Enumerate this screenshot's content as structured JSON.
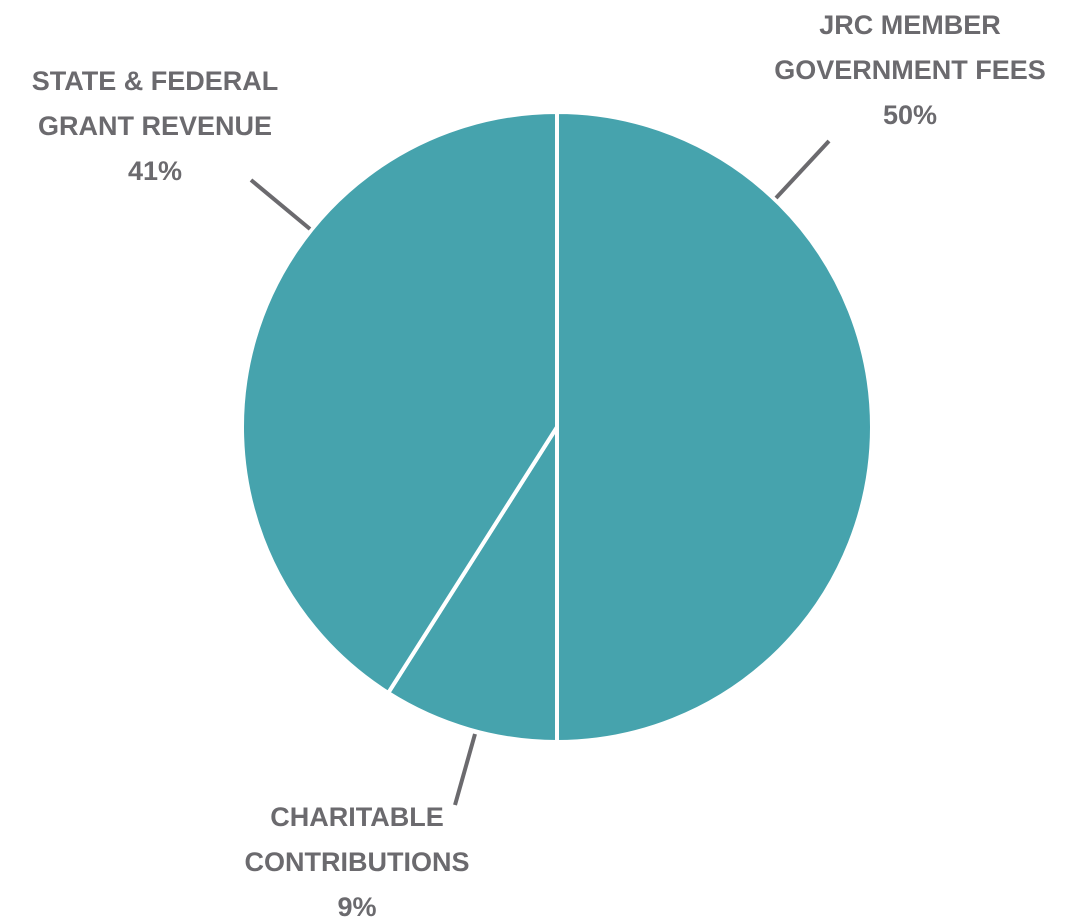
{
  "chart_data": {
    "type": "pie",
    "start_angle": "12 o'clock",
    "direction": "clockwise",
    "slice_color": "#46a3ad",
    "separator_color": "#ffffff",
    "label_color": "#6b6a6e",
    "leader_color": "#6b6a6e",
    "slices": [
      {
        "label_lines": [
          "JRC MEMBER",
          "GOVERNMENT FEES"
        ],
        "value": 50,
        "value_label": "50%"
      },
      {
        "label_lines": [
          "CHARITABLE",
          "CONTRIBUTIONS"
        ],
        "value": 9,
        "value_label": "9%"
      },
      {
        "label_lines": [
          "STATE & FEDERAL",
          "GRANT REVENUE"
        ],
        "value": 41,
        "value_label": "41%"
      }
    ]
  }
}
